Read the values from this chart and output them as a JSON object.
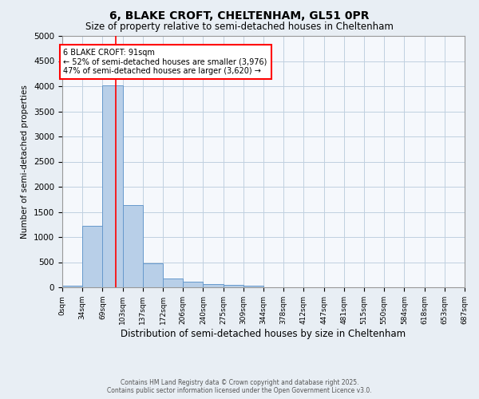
{
  "title1": "6, BLAKE CROFT, CHELTENHAM, GL51 0PR",
  "title2": "Size of property relative to semi-detached houses in Cheltenham",
  "xlabel": "Distribution of semi-detached houses by size in Cheltenham",
  "ylabel": "Number of semi-detached properties",
  "bin_labels": [
    "0sqm",
    "34sqm",
    "69sqm",
    "103sqm",
    "137sqm",
    "172sqm",
    "206sqm",
    "240sqm",
    "275sqm",
    "309sqm",
    "344sqm",
    "378sqm",
    "412sqm",
    "447sqm",
    "481sqm",
    "515sqm",
    "550sqm",
    "584sqm",
    "618sqm",
    "653sqm",
    "687sqm"
  ],
  "bar_values": [
    30,
    1230,
    4020,
    1640,
    470,
    175,
    110,
    65,
    50,
    35,
    0,
    0,
    0,
    0,
    0,
    0,
    0,
    0,
    0,
    0
  ],
  "bar_color": "#b8cfe8",
  "bar_edge_color": "#6699cc",
  "property_size": 91,
  "annotation_text": "6 BLAKE CROFT: 91sqm\n← 52% of semi-detached houses are smaller (3,976)\n47% of semi-detached houses are larger (3,620) →",
  "ylim": [
    0,
    5000
  ],
  "yticks": [
    0,
    500,
    1000,
    1500,
    2000,
    2500,
    3000,
    3500,
    4000,
    4500,
    5000
  ],
  "bin_width": 34,
  "footer1": "Contains HM Land Registry data © Crown copyright and database right 2025.",
  "footer2": "Contains public sector information licensed under the Open Government Licence v3.0.",
  "background_color": "#e8eef4",
  "plot_bg_color": "#f5f8fc",
  "grid_color": "#c0d0e0"
}
